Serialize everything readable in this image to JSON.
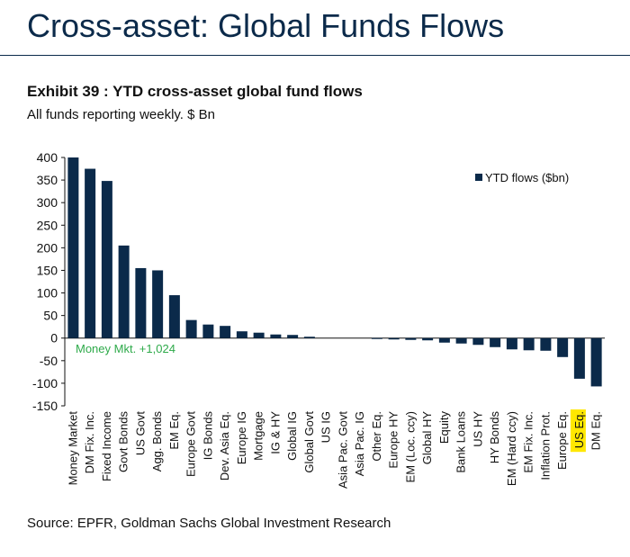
{
  "header": {
    "title": "Cross-asset: Global Funds Flows"
  },
  "exhibit": {
    "title": "Exhibit 39 : YTD cross-asset global fund flows",
    "subtitle": "All funds reporting weekly. $ Bn"
  },
  "source": "Source: EPFR, Goldman Sachs Global Investment Research",
  "chart_data": {
    "type": "bar",
    "categories": [
      "Money Market",
      "DM Fix. Inc.",
      "Fixed Income",
      "Govt Bonds",
      "US Govt",
      "Agg. Bonds",
      "EM Eq.",
      "Europe Govt",
      "IG Bonds",
      "Dev. Asia Eq.",
      "Europe IG",
      "Mortgage",
      "IG & HY",
      "Global IG",
      "Global Govt",
      "US IG",
      "Asia Pac. Govt",
      "Asia Pac. IG",
      "Other Eq.",
      "Europe HY",
      "EM (Loc. ccy)",
      "Global HY",
      "Equity",
      "Bank Loans",
      "US HY",
      "HY Bonds",
      "EM (Hard ccy)",
      "EM Fix. Inc.",
      "Inflation Prot.",
      "Europe Eq.",
      "US Eq.",
      "DM Eq."
    ],
    "series": [
      {
        "name": "YTD flows ($bn)",
        "values": [
          400,
          375,
          348,
          205,
          155,
          150,
          95,
          40,
          30,
          27,
          15,
          12,
          8,
          7,
          3,
          0,
          0,
          0,
          -2,
          -3,
          -4,
          -5,
          -10,
          -12,
          -15,
          -20,
          -25,
          -27,
          -28,
          -42,
          -90,
          -107
        ]
      }
    ],
    "ylim": [
      -150,
      400
    ],
    "yticks": [
      400,
      350,
      300,
      250,
      200,
      150,
      100,
      50,
      0,
      -50,
      -100,
      -150
    ],
    "highlight_category": "US Eq.",
    "highlight_color": "#ffe800",
    "bar_color": "#0b2a4a",
    "annotation": "Money Mkt. +1,024",
    "annotation_color": "#2eaa4a",
    "legend_position": "top-right",
    "grid": false
  }
}
